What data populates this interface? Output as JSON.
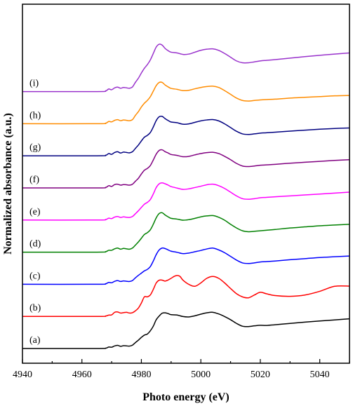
{
  "chart_data": {
    "type": "line",
    "title": "",
    "xlabel": "Photo energy (eV)",
    "ylabel": "Normalized absorbance (a.u.)",
    "xlim": [
      4940,
      5050
    ],
    "xticks": [
      4940,
      4960,
      4980,
      5000,
      5020,
      5040
    ],
    "yticks_shown": false,
    "legend": "none",
    "stacked_offset": 1,
    "series": [
      {
        "name": "(a)",
        "color": "#000000",
        "x": [
          4940,
          4965,
          4968,
          4969,
          4970,
          4971,
          4972,
          4973,
          4974,
          4975,
          4976,
          4977,
          4978,
          4979,
          4980,
          4981,
          4982,
          4983,
          4984,
          4985,
          4986,
          4987,
          4988,
          4989,
          4990,
          4992,
          4994,
          4996,
          4998,
          5000,
          5002,
          5004,
          5006,
          5008,
          5010,
          5012,
          5014,
          5016,
          5018,
          5020,
          5022,
          5025,
          5030,
          5035,
          5040,
          5045,
          5050
        ],
        "y": [
          0.0,
          0.0,
          0.02,
          0.08,
          0.07,
          0.14,
          0.17,
          0.12,
          0.15,
          0.14,
          0.13,
          0.18,
          0.32,
          0.45,
          0.6,
          0.72,
          0.78,
          0.95,
          1.2,
          1.55,
          1.75,
          1.9,
          1.92,
          1.88,
          1.82,
          1.8,
          1.72,
          1.7,
          1.76,
          1.85,
          1.92,
          1.95,
          1.86,
          1.72,
          1.55,
          1.35,
          1.2,
          1.18,
          1.22,
          1.25,
          1.24,
          1.28,
          1.35,
          1.42,
          1.48,
          1.54,
          1.6
        ]
      },
      {
        "name": "(b)",
        "color": "#ff0000",
        "x": [
          4940,
          4965,
          4968,
          4969,
          4970,
          4971,
          4972,
          4973,
          4974,
          4975,
          4976,
          4977,
          4978,
          4979,
          4980,
          4981,
          4982,
          4983,
          4984,
          4985,
          4986,
          4987,
          4988,
          4989,
          4990,
          4991,
          4992,
          4993,
          4994,
          4996,
          4998,
          5000,
          5002,
          5004,
          5006,
          5008,
          5010,
          5012,
          5014,
          5016,
          5018,
          5020,
          5022,
          5025,
          5030,
          5035,
          5040,
          5045,
          5050
        ],
        "y": [
          0.0,
          0.0,
          0.02,
          0.07,
          0.08,
          0.22,
          0.24,
          0.18,
          0.2,
          0.22,
          0.18,
          0.2,
          0.3,
          0.45,
          0.72,
          1.05,
          1.05,
          1.15,
          1.45,
          1.8,
          1.95,
          1.95,
          1.9,
          1.96,
          2.05,
          2.15,
          2.2,
          2.15,
          1.95,
          1.72,
          1.62,
          1.8,
          2.05,
          2.15,
          2.05,
          1.8,
          1.5,
          1.22,
          1.05,
          1.0,
          1.15,
          1.3,
          1.22,
          1.12,
          1.08,
          1.15,
          1.35,
          1.62,
          1.63
        ]
      },
      {
        "name": "(c)",
        "color": "#0000ff",
        "x": [
          4940,
          4965,
          4968,
          4969,
          4970,
          4971,
          4972,
          4973,
          4974,
          4975,
          4976,
          4977,
          4978,
          4979,
          4980,
          4981,
          4982,
          4983,
          4984,
          4985,
          4986,
          4987,
          4988,
          4989,
          4990,
          4992,
          4994,
          4996,
          4998,
          5000,
          5002,
          5004,
          5006,
          5008,
          5010,
          5012,
          5014,
          5016,
          5018,
          5020,
          5022,
          5025,
          5030,
          5035,
          5040,
          5045,
          5050
        ],
        "y": [
          0.0,
          0.0,
          0.03,
          0.1,
          0.08,
          0.16,
          0.2,
          0.15,
          0.18,
          0.16,
          0.15,
          0.2,
          0.35,
          0.48,
          0.6,
          0.72,
          0.8,
          0.95,
          1.25,
          1.6,
          1.85,
          1.95,
          1.92,
          1.85,
          1.78,
          1.72,
          1.65,
          1.68,
          1.75,
          1.82,
          1.9,
          1.95,
          1.85,
          1.7,
          1.5,
          1.3,
          1.15,
          1.12,
          1.15,
          1.2,
          1.22,
          1.25,
          1.32,
          1.38,
          1.44,
          1.48,
          1.52
        ]
      },
      {
        "name": "(d)",
        "color": "#008000",
        "x": [
          4940,
          4965,
          4968,
          4969,
          4970,
          4971,
          4972,
          4973,
          4974,
          4975,
          4976,
          4977,
          4978,
          4979,
          4980,
          4981,
          4982,
          4983,
          4984,
          4985,
          4986,
          4987,
          4988,
          4989,
          4990,
          4992,
          4994,
          4996,
          4998,
          5000,
          5002,
          5004,
          5006,
          5008,
          5010,
          5012,
          5014,
          5016,
          5018,
          5020,
          5022,
          5025,
          5030,
          5035,
          5040,
          5045,
          5050
        ],
        "y": [
          0.0,
          0.0,
          0.03,
          0.1,
          0.1,
          0.18,
          0.22,
          0.16,
          0.2,
          0.18,
          0.16,
          0.22,
          0.38,
          0.55,
          0.75,
          0.95,
          1.05,
          1.2,
          1.5,
          1.85,
          2.08,
          2.12,
          2.0,
          1.9,
          1.82,
          1.78,
          1.72,
          1.75,
          1.82,
          1.9,
          1.95,
          1.97,
          1.88,
          1.72,
          1.5,
          1.3,
          1.15,
          1.1,
          1.12,
          1.15,
          1.18,
          1.22,
          1.3,
          1.36,
          1.42,
          1.46,
          1.5
        ]
      },
      {
        "name": "(e)",
        "color": "#ff00ff",
        "x": [
          4940,
          4965,
          4968,
          4969,
          4970,
          4971,
          4972,
          4973,
          4974,
          4975,
          4976,
          4977,
          4978,
          4979,
          4980,
          4981,
          4982,
          4983,
          4984,
          4985,
          4986,
          4987,
          4988,
          4989,
          4990,
          4992,
          4994,
          4996,
          4998,
          5000,
          5002,
          5004,
          5006,
          5008,
          5010,
          5012,
          5014,
          5016,
          5018,
          5020,
          5022,
          5025,
          5030,
          5035,
          5040,
          5045,
          5050
        ],
        "y": [
          0.0,
          0.0,
          0.03,
          0.1,
          0.08,
          0.16,
          0.19,
          0.14,
          0.17,
          0.15,
          0.14,
          0.19,
          0.34,
          0.5,
          0.68,
          0.85,
          0.95,
          1.1,
          1.4,
          1.75,
          1.95,
          2.0,
          1.95,
          1.88,
          1.8,
          1.72,
          1.65,
          1.68,
          1.75,
          1.82,
          1.9,
          1.93,
          1.85,
          1.7,
          1.5,
          1.3,
          1.15,
          1.12,
          1.15,
          1.2,
          1.22,
          1.25,
          1.3,
          1.35,
          1.4,
          1.45,
          1.5
        ]
      },
      {
        "name": "(f)",
        "color": "#800080",
        "x": [
          4940,
          4965,
          4968,
          4969,
          4970,
          4971,
          4972,
          4973,
          4974,
          4975,
          4976,
          4977,
          4978,
          4979,
          4980,
          4981,
          4982,
          4983,
          4984,
          4985,
          4986,
          4987,
          4988,
          4989,
          4990,
          4992,
          4994,
          4996,
          4998,
          5000,
          5002,
          5004,
          5006,
          5008,
          5010,
          5012,
          5014,
          5016,
          5018,
          5020,
          5022,
          5025,
          5030,
          5035,
          5040,
          5045,
          5050
        ],
        "y": [
          0.0,
          0.0,
          0.03,
          0.12,
          0.08,
          0.18,
          0.2,
          0.15,
          0.18,
          0.17,
          0.15,
          0.2,
          0.36,
          0.52,
          0.75,
          0.95,
          1.05,
          1.2,
          1.5,
          1.82,
          2.02,
          2.05,
          1.95,
          1.88,
          1.8,
          1.75,
          1.68,
          1.7,
          1.78,
          1.85,
          1.9,
          1.92,
          1.85,
          1.7,
          1.52,
          1.32,
          1.18,
          1.15,
          1.18,
          1.22,
          1.24,
          1.27,
          1.33,
          1.38,
          1.43,
          1.48,
          1.52
        ]
      },
      {
        "name": "(g)",
        "color": "#000080",
        "x": [
          4940,
          4965,
          4968,
          4969,
          4970,
          4971,
          4972,
          4973,
          4974,
          4975,
          4976,
          4977,
          4978,
          4979,
          4980,
          4981,
          4982,
          4983,
          4984,
          4985,
          4986,
          4987,
          4988,
          4989,
          4990,
          4992,
          4994,
          4996,
          4998,
          5000,
          5002,
          5004,
          5006,
          5008,
          5010,
          5012,
          5014,
          5016,
          5018,
          5020,
          5022,
          5025,
          5030,
          5035,
          5040,
          5045,
          5050
        ],
        "y": [
          0.0,
          0.0,
          0.03,
          0.12,
          0.08,
          0.18,
          0.22,
          0.15,
          0.2,
          0.18,
          0.16,
          0.22,
          0.4,
          0.58,
          0.8,
          1.0,
          1.1,
          1.25,
          1.55,
          1.9,
          2.1,
          2.12,
          2.0,
          1.9,
          1.82,
          1.78,
          1.7,
          1.72,
          1.8,
          1.88,
          1.93,
          1.95,
          1.88,
          1.72,
          1.52,
          1.32,
          1.18,
          1.15,
          1.18,
          1.22,
          1.24,
          1.27,
          1.33,
          1.38,
          1.43,
          1.47,
          1.5
        ]
      },
      {
        "name": "(h)",
        "color": "#ff8c00",
        "x": [
          4940,
          4965,
          4968,
          4969,
          4970,
          4971,
          4972,
          4973,
          4974,
          4975,
          4976,
          4977,
          4978,
          4979,
          4980,
          4981,
          4982,
          4983,
          4984,
          4985,
          4986,
          4987,
          4988,
          4989,
          4990,
          4992,
          4994,
          4996,
          4998,
          5000,
          5002,
          5004,
          5006,
          5008,
          5010,
          5012,
          5014,
          5016,
          5018,
          5020,
          5022,
          5025,
          5030,
          5035,
          5040,
          5045,
          5050
        ],
        "y": [
          0.0,
          0.0,
          0.03,
          0.12,
          0.1,
          0.18,
          0.22,
          0.16,
          0.2,
          0.18,
          0.16,
          0.22,
          0.45,
          0.65,
          0.9,
          1.1,
          1.25,
          1.45,
          1.75,
          2.05,
          2.22,
          2.22,
          2.08,
          1.98,
          1.9,
          1.85,
          1.78,
          1.8,
          1.88,
          1.95,
          2.0,
          2.02,
          1.95,
          1.78,
          1.58,
          1.38,
          1.25,
          1.22,
          1.25,
          1.28,
          1.3,
          1.32,
          1.38,
          1.42,
          1.46,
          1.5,
          1.52
        ]
      },
      {
        "name": "(i)",
        "color": "#9932cc",
        "x": [
          4940,
          4965,
          4968,
          4969,
          4970,
          4971,
          4972,
          4973,
          4974,
          4975,
          4976,
          4977,
          4978,
          4979,
          4980,
          4981,
          4982,
          4983,
          4984,
          4985,
          4986,
          4987,
          4988,
          4989,
          4990,
          4992,
          4994,
          4996,
          4998,
          5000,
          5002,
          5004,
          5006,
          5008,
          5010,
          5012,
          5014,
          5016,
          5018,
          5020,
          5022,
          5025,
          5030,
          5035,
          5040,
          5045,
          5050
        ],
        "y": [
          0.0,
          0.0,
          0.04,
          0.14,
          0.1,
          0.2,
          0.24,
          0.18,
          0.22,
          0.2,
          0.18,
          0.25,
          0.5,
          0.72,
          1.0,
          1.25,
          1.45,
          1.7,
          2.05,
          2.4,
          2.55,
          2.5,
          2.32,
          2.2,
          2.12,
          2.08,
          2.0,
          2.02,
          2.12,
          2.22,
          2.28,
          2.3,
          2.22,
          2.05,
          1.85,
          1.65,
          1.55,
          1.55,
          1.6,
          1.65,
          1.68,
          1.72,
          1.8,
          1.88,
          1.95,
          2.02,
          2.08
        ]
      }
    ]
  }
}
